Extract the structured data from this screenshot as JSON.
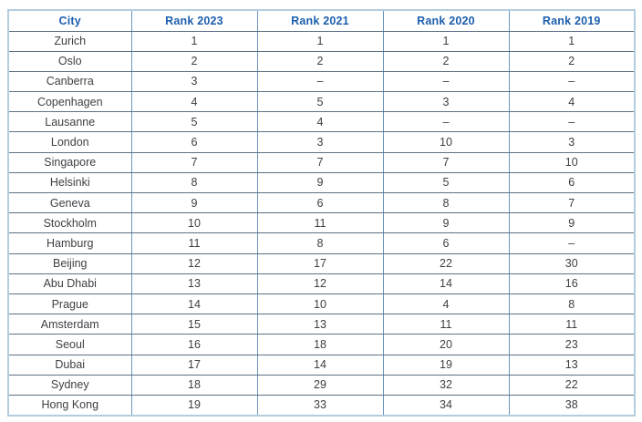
{
  "colors": {
    "header_text": "#1d5fae",
    "body_text": "#3e4044",
    "outer_border": "#b3cddf",
    "vertical_grid": "#6a95bd",
    "horizontal_grid": "#5e7184",
    "background": "#ffffff"
  },
  "chart_data": {
    "type": "table",
    "title": "",
    "columns": [
      "City",
      "Rank 2023",
      "Rank 2021",
      "Rank 2020",
      "Rank 2019"
    ],
    "rows": [
      [
        "Zurich",
        "1",
        "1",
        "1",
        "1"
      ],
      [
        "Oslo",
        "2",
        "2",
        "2",
        "2"
      ],
      [
        "Canberra",
        "3",
        "–",
        "–",
        "–"
      ],
      [
        "Copenhagen",
        "4",
        "5",
        "3",
        "4"
      ],
      [
        "Lausanne",
        "5",
        "4",
        "–",
        "–"
      ],
      [
        "London",
        "6",
        "3",
        "10",
        "3"
      ],
      [
        "Singapore",
        "7",
        "7",
        "7",
        "10"
      ],
      [
        "Helsinki",
        "8",
        "9",
        "5",
        "6"
      ],
      [
        "Geneva",
        "9",
        "6",
        "8",
        "7"
      ],
      [
        "Stockholm",
        "10",
        "11",
        "9",
        "9"
      ],
      [
        "Hamburg",
        "11",
        "8",
        "6",
        "–"
      ],
      [
        "Beijing",
        "12",
        "17",
        "22",
        "30"
      ],
      [
        "Abu Dhabi",
        "13",
        "12",
        "14",
        "16"
      ],
      [
        "Prague",
        "14",
        "10",
        "4",
        "8"
      ],
      [
        "Amsterdam",
        "15",
        "13",
        "11",
        "11"
      ],
      [
        "Seoul",
        "16",
        "18",
        "20",
        "23"
      ],
      [
        "Dubai",
        "17",
        "14",
        "19",
        "13"
      ],
      [
        "Sydney",
        "18",
        "29",
        "32",
        "22"
      ],
      [
        "Hong Kong",
        "19",
        "33",
        "34",
        "38"
      ]
    ]
  }
}
